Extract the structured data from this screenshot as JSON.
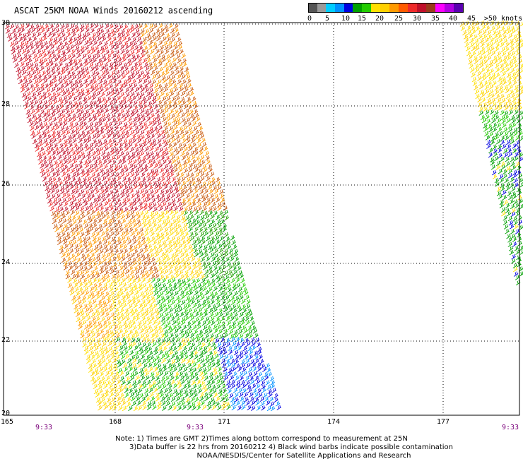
{
  "title": "ASCAT 25KM NOAA Winds 20160212 ascending",
  "legend": {
    "colors": [
      "#555555",
      "#9a9a9a",
      "#00cdff",
      "#0090ff",
      "#0000e0",
      "#00a000",
      "#22cc00",
      "#ffe000",
      "#ffd000",
      "#ff9a00",
      "#ff5a00",
      "#ee2a2a",
      "#c0102a",
      "#9a3a1a",
      "#ff00ff",
      "#b000e0",
      "#5a00b0"
    ],
    "labels": [
      "0",
      "5",
      "10",
      "15",
      "20",
      "25",
      "30",
      "35",
      "40",
      "45",
      ">50 knots"
    ]
  },
  "axes": {
    "lat_ticks": [
      "30",
      "28",
      "26",
      "24",
      "22",
      "20"
    ],
    "lon_ticks": [
      "165",
      "168",
      "171",
      "174",
      "177"
    ],
    "time_ticks": [
      "9:33",
      "9:33",
      "9:33"
    ]
  },
  "notes": [
    "Note: 1) Times are GMT 2)Times along bottom correspond to measurement at 25N",
    "3)Data buffer is 22 hrs from 20160212 4) Black wind barbs indicate possible contamination",
    "NOAA/NESDIS/Center for Satellite Applications and Research"
  ]
}
